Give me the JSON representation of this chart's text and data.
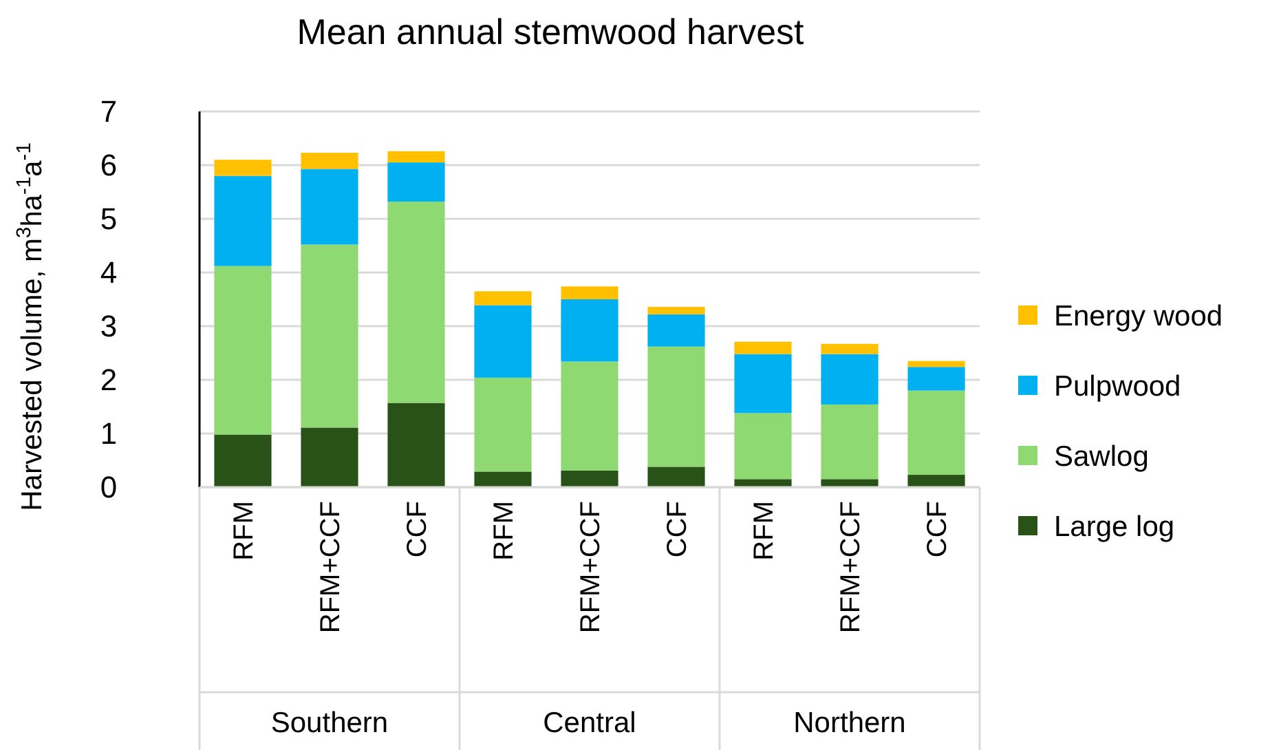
{
  "chart_data": {
    "type": "bar",
    "title": "Mean annual stemwood harvest",
    "ylabel": "Harvested volume, m$^{3}$ha$^{-1}$a$^{-1}$",
    "categories": [
      "RFM",
      "RFM+CCF",
      "CCF",
      "RFM",
      "RFM+CCF",
      "CCF",
      "RFM",
      "RFM+CCF",
      "CCF"
    ],
    "annotations": [
      "Southern",
      "Central",
      "Northern"
    ],
    "stacked": true,
    "series": [
      {
        "name": "Large log",
        "color": "#295218",
        "values": [
          0.98,
          1.11,
          1.57,
          0.29,
          0.31,
          0.38,
          0.15,
          0.15,
          0.23
        ]
      },
      {
        "name": "Sawlog",
        "color": "#8fd973",
        "values": [
          3.14,
          3.41,
          3.75,
          1.75,
          2.03,
          2.24,
          1.23,
          1.39,
          1.57
        ]
      },
      {
        "name": "Pulpwood",
        "color": "#00b0f0",
        "values": [
          1.68,
          1.41,
          0.73,
          1.35,
          1.16,
          0.6,
          1.1,
          0.94,
          0.44
        ]
      },
      {
        "name": "Energy wood",
        "color": "#ffc000",
        "values": [
          0.3,
          0.3,
          0.21,
          0.26,
          0.24,
          0.14,
          0.23,
          0.19,
          0.11
        ]
      }
    ],
    "ylim": [
      0,
      7
    ],
    "yticks": [
      0,
      1,
      2,
      3,
      4,
      5,
      6,
      7
    ],
    "grid": "y",
    "legend": "right"
  }
}
